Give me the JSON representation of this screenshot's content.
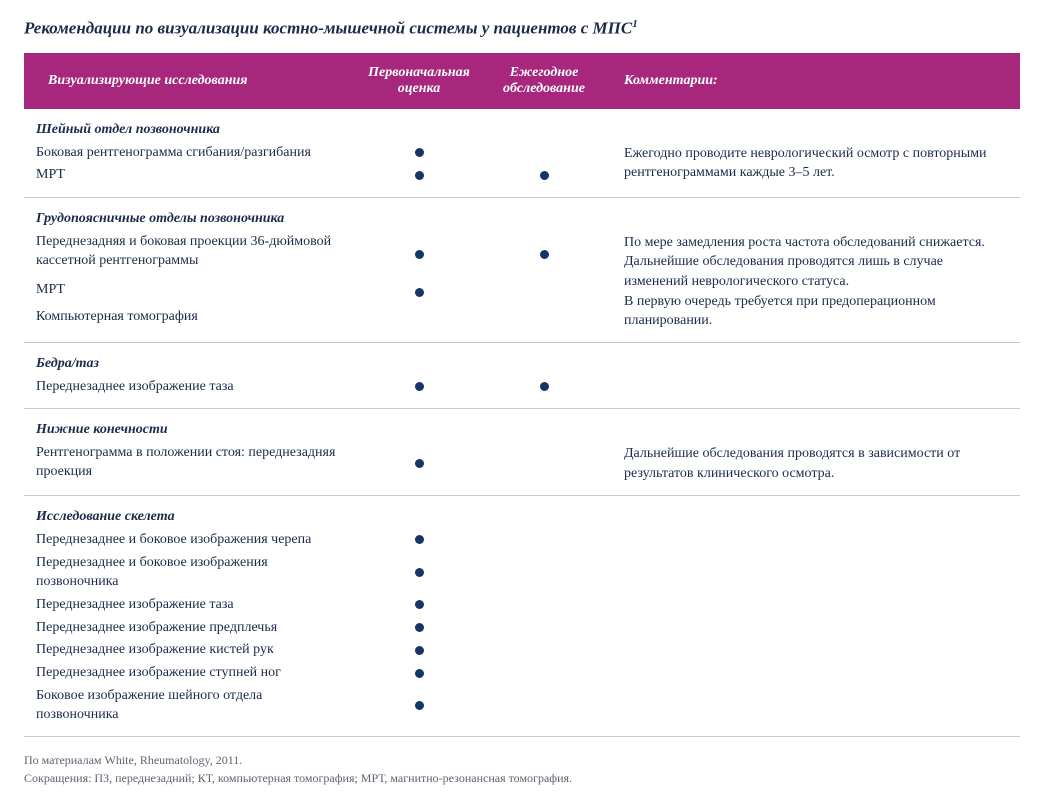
{
  "colors": {
    "header_bg": "#a6277c",
    "header_text": "#ffffff",
    "body_text": "#1a2b4a",
    "dot": "#143566",
    "divider": "#c8c8c8",
    "footnote": "#5b6470",
    "background": "#ffffff"
  },
  "typography": {
    "font_family": "Georgia, 'Times New Roman', serif",
    "title_fontsize": 17,
    "header_fontsize": 14,
    "body_fontsize": 14,
    "footnote_fontsize": 12
  },
  "title": "Рекомендации по визуализации костно-мышечной системы у пациентов с МПС",
  "title_sup": "1",
  "columns": {
    "study": "Визуализирующие исследования",
    "initial": "Первоначальная оценка",
    "annual": "Ежегодное обследование",
    "comment": "Комментарии:"
  },
  "sections": [
    {
      "heading": "Шейный отдел позвоночника",
      "comment": "Ежегодно проводите неврологический осмотр с повторными рентгенограммами каждые 3–5 лет.",
      "rows": [
        {
          "label": "Боковая рентгенограмма сгибания/разгибания",
          "initial": true,
          "annual": false
        },
        {
          "label": "МРТ",
          "initial": true,
          "annual": true
        }
      ]
    },
    {
      "heading": "Грудопоясничные отделы позвоночника",
      "comment": "По мере замедления роста частота обследований снижается.\nДальнейшие обследования проводятся лишь в случае изменений неврологического статуса.\nВ первую очередь требуется при предоперационном планировании.",
      "rows": [
        {
          "label": "Переднезадняя и боковая проекции 36-дюймовой кассетной рентгенограммы",
          "initial": true,
          "annual": true
        },
        {
          "label": "МРТ",
          "initial": true,
          "annual": false
        },
        {
          "label": "Компьютерная томография",
          "initial": false,
          "annual": false
        }
      ]
    },
    {
      "heading": "Бедра/таз",
      "comment": "",
      "rows": [
        {
          "label": "Переднезаднее изображение таза",
          "initial": true,
          "annual": true
        }
      ]
    },
    {
      "heading": "Нижние конечности",
      "comment": "Дальнейшие обследования проводятся в зависимости от результатов клинического осмотра.",
      "rows": [
        {
          "label": "Рентгенограмма в положении стоя: переднезадняя проекция",
          "initial": true,
          "annual": false
        }
      ]
    },
    {
      "heading": "Исследование скелета",
      "comment": "",
      "rows": [
        {
          "label": "Переднезаднее и боковое изображения черепа",
          "initial": true,
          "annual": false
        },
        {
          "label": "Переднезаднее и боковое изображения позвоночника",
          "initial": true,
          "annual": false
        },
        {
          "label": "Переднезаднее изображение таза",
          "initial": true,
          "annual": false
        },
        {
          "label": "Переднезаднее изображение предплечья",
          "initial": true,
          "annual": false
        },
        {
          "label": "Переднезаднее изображение кистей рук",
          "initial": true,
          "annual": false
        },
        {
          "label": "Переднезаднее изображение ступней ног",
          "initial": true,
          "annual": false
        },
        {
          "label": "Боковое изображение шейного отдела позвоночника",
          "initial": true,
          "annual": false
        }
      ]
    }
  ],
  "footnotes": [
    "По материалам White, Rheumatology, 2011.",
    "Сокращения: ПЗ, переднезадний; КТ, компьютерная томография; МРТ, магнитно-резонансная томография."
  ]
}
